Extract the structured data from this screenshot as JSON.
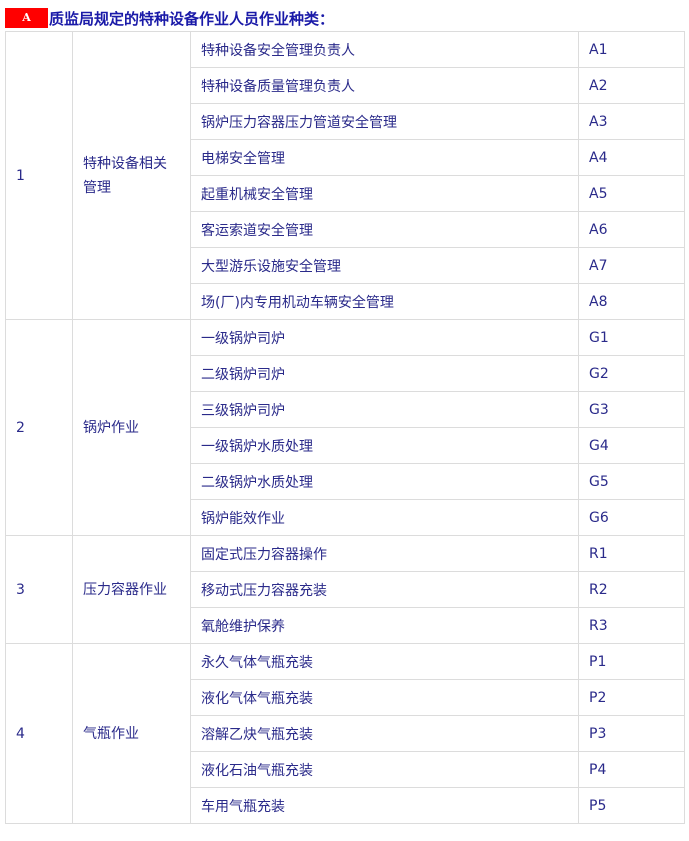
{
  "title": {
    "badge": "A",
    "text": "质监局规定的特种设备作业人员作业种类："
  },
  "groups": [
    {
      "no": "1",
      "category": "特种设备相关管理",
      "items": [
        {
          "name": "特种设备安全管理负责人",
          "code": "A1"
        },
        {
          "name": "特种设备质量管理负责人",
          "code": "A2"
        },
        {
          "name": "锅炉压力容器压力管道安全管理",
          "code": "A3"
        },
        {
          "name": "电梯安全管理",
          "code": "A4"
        },
        {
          "name": "起重机械安全管理",
          "code": "A5"
        },
        {
          "name": "客运索道安全管理",
          "code": "A6"
        },
        {
          "name": "大型游乐设施安全管理",
          "code": "A7"
        },
        {
          "name": "场(厂)内专用机动车辆安全管理",
          "code": "A8"
        }
      ]
    },
    {
      "no": "2",
      "category": "锅炉作业",
      "items": [
        {
          "name": "一级锅炉司炉",
          "code": "G1"
        },
        {
          "name": "二级锅炉司炉",
          "code": "G2"
        },
        {
          "name": "三级锅炉司炉",
          "code": "G3"
        },
        {
          "name": "一级锅炉水质处理",
          "code": "G4"
        },
        {
          "name": "二级锅炉水质处理",
          "code": "G5"
        },
        {
          "name": "锅炉能效作业",
          "code": "G6"
        }
      ]
    },
    {
      "no": "3",
      "category": "压力容器作业",
      "items": [
        {
          "name": "固定式压力容器操作",
          "code": "R1"
        },
        {
          "name": "移动式压力容器充装",
          "code": "R2"
        },
        {
          "name": "氧舱维护保养",
          "code": "R3"
        }
      ]
    },
    {
      "no": "4",
      "category": "气瓶作业",
      "items": [
        {
          "name": "永久气体气瓶充装",
          "code": "P1"
        },
        {
          "name": "液化气体气瓶充装",
          "code": "P2"
        },
        {
          "name": "溶解乙炔气瓶充装",
          "code": "P3"
        },
        {
          "name": "液化石油气瓶充装",
          "code": "P4"
        },
        {
          "name": "车用气瓶充装",
          "code": "P5"
        }
      ]
    }
  ],
  "colors": {
    "badge": "#ff0000",
    "title": "#1a1aa8",
    "text": "#2a2a8a",
    "border": "#dcdcdc"
  }
}
